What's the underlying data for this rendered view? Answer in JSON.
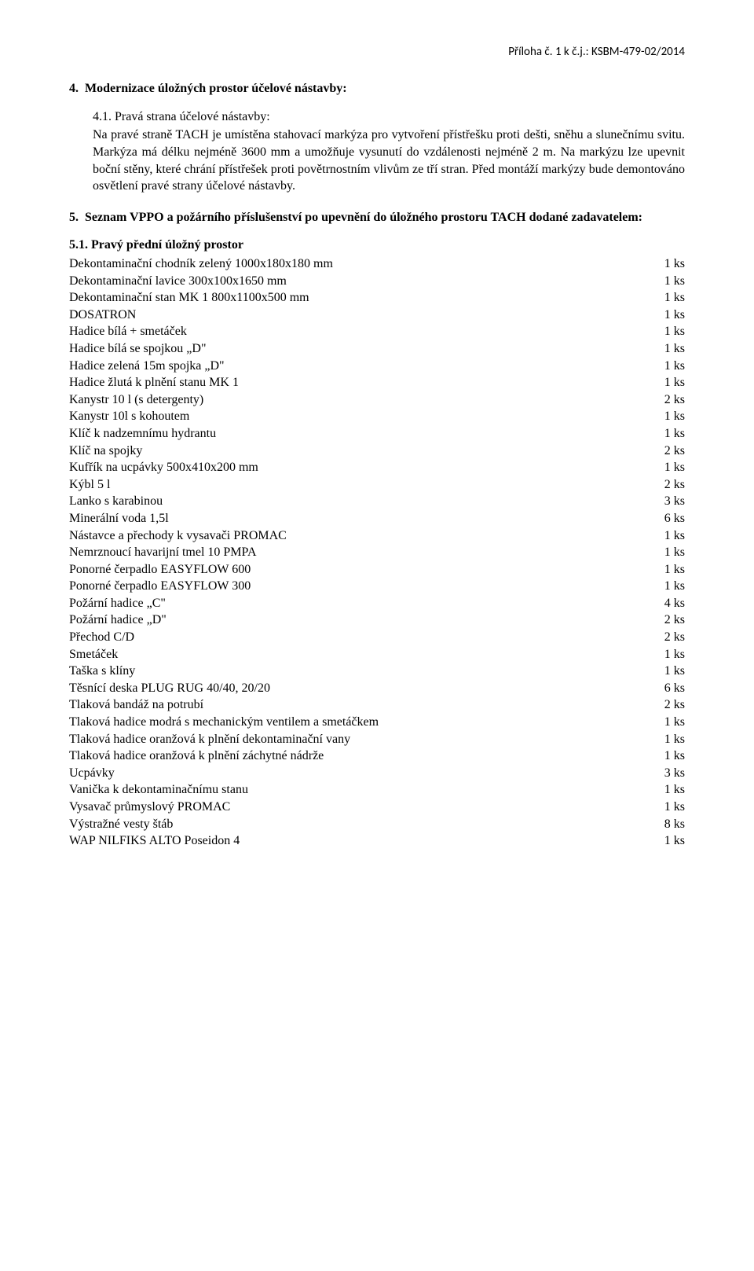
{
  "header": {
    "attachment": "Příloha č. 1 k č.j.: KSBM-479-02/2014"
  },
  "section4": {
    "num": "4.",
    "title": "Modernizace úložných prostor účelové nástavby:",
    "sub_num": "4.1.",
    "sub_title": "Pravá strana účelové nástavby:",
    "para": "Na pravé straně TACH je umístěna stahovací markýza pro vytvoření přístřešku proti dešti, sněhu a slunečnímu svitu. Markýza má délku nejméně 3600 mm a umožňuje vysunutí do vzdálenosti nejméně 2 m. Na markýzu lze upevnit boční stěny, které chrání přístřešek proti povětrnostním vlivům ze tří stran. Před montáží markýzy bude demontováno osvětlení pravé strany účelové nástavby."
  },
  "section5": {
    "num": "5.",
    "title": "Seznam VPPO a požárního příslušenství po upevnění do úložného prostoru TACH dodané zadavatelem:",
    "sub_num": "5.1.",
    "sub_title": "Pravý přední úložný prostor",
    "items": [
      {
        "label": "Dekontaminační chodník zelený 1000x180x180 mm",
        "qty": "1 ks"
      },
      {
        "label": "Dekontaminační lavice 300x100x1650 mm",
        "qty": "1 ks"
      },
      {
        "label": "Dekontaminační stan MK 1 800x1100x500 mm",
        "qty": "1 ks"
      },
      {
        "label": "DOSATRON",
        "qty": "1 ks"
      },
      {
        "label": "Hadice bílá + smetáček",
        "qty": "1 ks"
      },
      {
        "label": "Hadice bílá se spojkou „D\"",
        "qty": "1 ks"
      },
      {
        "label": "Hadice zelená 15m spojka „D\"",
        "qty": "1 ks"
      },
      {
        "label": "Hadice žlutá k plnění stanu MK 1",
        "qty": "1 ks"
      },
      {
        "label": "Kanystr 10 l (s detergenty)",
        "qty": "2 ks"
      },
      {
        "label": "Kanystr 10l s kohoutem",
        "qty": "1 ks"
      },
      {
        "label": "Klíč k nadzemnímu hydrantu",
        "qty": "1 ks"
      },
      {
        "label": "Klíč na spojky",
        "qty": "2 ks"
      },
      {
        "label": "Kufřík na ucpávky 500x410x200 mm",
        "qty": "1 ks"
      },
      {
        "label": "Kýbl 5 l",
        "qty": "2 ks"
      },
      {
        "label": "Lanko s karabinou",
        "qty": "3 ks"
      },
      {
        "label": "Minerální voda 1,5l",
        "qty": "6 ks"
      },
      {
        "label": "Nástavce a přechody k vysavači PROMAC",
        "qty": "1 ks"
      },
      {
        "label": "Nemrznoucí havarijní tmel 10 PMPA",
        "qty": "1 ks"
      },
      {
        "label": "Ponorné čerpadlo  EASYFLOW 600",
        "qty": "1 ks"
      },
      {
        "label": "Ponorné čerpadlo  EASYFLOW 300",
        "qty": "1 ks"
      },
      {
        "label": "Požární hadice „C\"",
        "qty": "4 ks"
      },
      {
        "label": "Požární hadice „D\"",
        "qty": "2 ks"
      },
      {
        "label": "Přechod C/D",
        "qty": "2 ks"
      },
      {
        "label": "Smetáček",
        "qty": "1 ks"
      },
      {
        "label": "Taška s klíny",
        "qty": "1 ks"
      },
      {
        "label": "Těsnící deska PLUG RUG 40/40, 20/20",
        "qty": "6 ks"
      },
      {
        "label": "Tlaková bandáž na potrubí",
        "qty": "2 ks"
      },
      {
        "label": "Tlaková hadice modrá s mechanickým ventilem a smetáčkem",
        "qty": "1 ks"
      },
      {
        "label": "Tlaková hadice oranžová k plnění dekontaminační vany",
        "qty": "1 ks"
      },
      {
        "label": "Tlaková hadice oranžová k plnění záchytné nádrže",
        "qty": "1 ks"
      },
      {
        "label": "Ucpávky",
        "qty": "3 ks"
      },
      {
        "label": "Vanička k dekontaminačnímu stanu",
        "qty": "1 ks"
      },
      {
        "label": "Vysavač průmyslový PROMAC",
        "qty": "1 ks"
      },
      {
        "label": "Výstražné vesty štáb",
        "qty": "8 ks"
      },
      {
        "label": "WAP NILFIKS ALTO Poseidon 4",
        "qty": "1 ks"
      }
    ]
  }
}
